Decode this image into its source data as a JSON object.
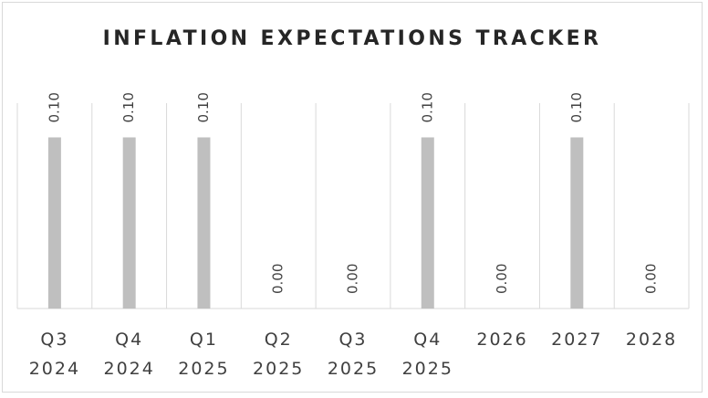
{
  "chart_data": {
    "type": "bar",
    "title": "INFLATION EXPECTATIONS TRACKER",
    "categories": [
      [
        "Q3",
        "2024"
      ],
      [
        "Q4",
        "2024"
      ],
      [
        "Q1",
        "2025"
      ],
      [
        "Q2",
        "2025"
      ],
      [
        "Q3",
        "2025"
      ],
      [
        "Q4",
        "2025"
      ],
      [
        "2026"
      ],
      [
        "2027"
      ],
      [
        "2028"
      ]
    ],
    "values": [
      0.1,
      0.1,
      0.1,
      0.0,
      0.0,
      0.1,
      0.0,
      0.1,
      0.0
    ],
    "data_labels": [
      "0.10",
      "0.10",
      "0.10",
      "0.00",
      "0.00",
      "0.10",
      "0.00",
      "0.10",
      "0.00"
    ],
    "ylim": [
      0,
      0.12
    ],
    "grid": "vertical",
    "legend": "none",
    "colors": {
      "bar": "#bfbfbf",
      "grid": "#d9d9d9",
      "text": "#404040",
      "title": "#262626"
    }
  }
}
